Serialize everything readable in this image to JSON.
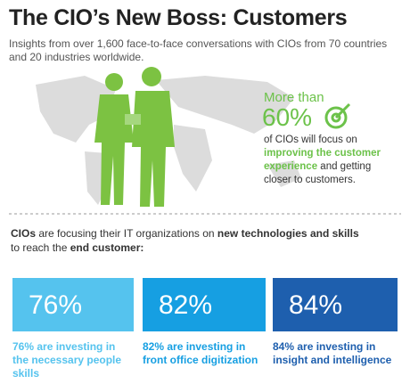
{
  "header": {
    "title": "The CIO’s New Boss: Customers",
    "subtitle_lines": [
      "Insights from over 1,600 face-to-face conversations with CIOs from 70 countries",
      "and 20 industries worldwide."
    ]
  },
  "callout": {
    "lead": "More than",
    "stat": "60%",
    "lines": [
      [
        {
          "text": "of CIOs will focus on",
          "bold": false
        }
      ],
      [
        {
          "text": "improving the customer",
          "bold": true
        }
      ],
      [
        {
          "text": "experience",
          "bold": true
        },
        {
          "text": " and getting",
          "bold": false
        }
      ],
      [
        {
          "text": "closer to customers.",
          "bold": false
        }
      ]
    ]
  },
  "focus": {
    "lines": [
      [
        {
          "text": "CIOs",
          "bold": true
        },
        {
          "text": " are focusing their IT organizations on ",
          "bold": false
        },
        {
          "text": "new technologies and skills",
          "bold": true
        }
      ],
      [
        {
          "text": "to reach the ",
          "bold": false
        },
        {
          "text": "end customer:",
          "bold": true
        }
      ]
    ]
  },
  "stats": [
    {
      "value": "76%",
      "color": "#55c3ee",
      "caption": [
        "76% are investing in",
        "the necessary people",
        "skills"
      ]
    },
    {
      "value": "82%",
      "color": "#169fe2",
      "caption": [
        "82% are investing in",
        "front office digitization"
      ]
    },
    {
      "value": "84%",
      "color": "#1e5fae",
      "caption": [
        "84% are investing in",
        "insight and intelligence"
      ]
    }
  ]
}
